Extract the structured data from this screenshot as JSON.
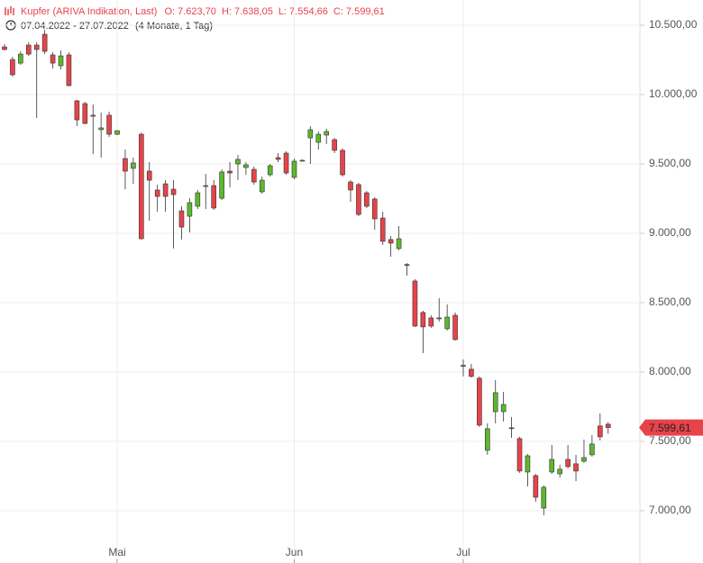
{
  "chart_data": {
    "type": "candlestick",
    "title": "Kupfer (ARIVA Indikation, Last)",
    "ohlc_labels": [
      "O: 7.623,70",
      "H: 7.638,05",
      "L: 7.554,66",
      "C: 7.599,61"
    ],
    "date_range": "07.04.2022 - 27.07.2022",
    "period": "(4 Monate, 1 Tag)",
    "last_price_label": "7.599,61",
    "up_color": "#5cb82e",
    "down_color": "#e8434a",
    "grid": true,
    "categories": [
      null,
      null,
      null,
      null,
      null,
      null,
      null,
      null,
      null,
      null,
      null,
      null,
      null,
      null,
      "Mai",
      null,
      null,
      null,
      null,
      null,
      null,
      null,
      null,
      null,
      null,
      null,
      null,
      null,
      null,
      null,
      null,
      null,
      null,
      null,
      null,
      null,
      "Jun",
      null,
      null,
      null,
      null,
      null,
      null,
      null,
      null,
      null,
      null,
      null,
      null,
      null,
      null,
      null,
      null,
      null,
      null,
      null,
      null,
      "Jul",
      null,
      null,
      null,
      null,
      null,
      null,
      null,
      null,
      null,
      null,
      null,
      null,
      null,
      null,
      null,
      null,
      null,
      null
    ],
    "open": [
      10344,
      10253,
      10227,
      10357,
      10357,
      10435,
      10286,
      10208,
      10286,
      9955,
      9935,
      9851,
      9747,
      9851,
      9714,
      9539,
      9468,
      9714,
      9448,
      9312,
      9357,
      9318,
      9162,
      9123,
      9195,
      9338,
      9344,
      9253,
      9448,
      9500,
      9474,
      9461,
      9299,
      9422,
      9546,
      9578,
      9403,
      9526,
      9688,
      9656,
      9708,
      9675,
      9598,
      9370,
      9351,
      9292,
      9247,
      9110,
      8955,
      8890,
      8775,
      8656,
      8429,
      8390,
      8390,
      8312,
      8409,
      8048,
      8020,
      7955,
      7435,
      7714,
      7714,
      7598,
      7520,
      7279,
      7253,
      7019,
      7279,
      7266,
      7370,
      7338,
      7357,
      7403,
      7611,
      7623.7
    ],
    "high": [
      10364,
      10273,
      10312,
      10377,
      10377,
      10468,
      10305,
      10318,
      10305,
      9961,
      9948,
      9929,
      9870,
      9877,
      9742,
      9604,
      9546,
      9727,
      9513,
      9351,
      9383,
      9383,
      9195,
      9253,
      9312,
      9429,
      9383,
      9461,
      9513,
      9565,
      9513,
      9481,
      9409,
      9500,
      9578,
      9591,
      9539,
      9533,
      9773,
      9734,
      9753,
      9688,
      9611,
      9383,
      9364,
      9305,
      9260,
      9156,
      8981,
      9052,
      8786,
      8669,
      8442,
      8409,
      8533,
      8487,
      8429,
      8091,
      8059,
      7968,
      7630,
      7942,
      7857,
      7675,
      7533,
      7409,
      7266,
      7182,
      7474,
      7331,
      7474,
      7403,
      7513,
      7546,
      7701,
      7638.05
    ],
    "low": [
      10318,
      10130,
      10214,
      10279,
      9831,
      10292,
      10188,
      10182,
      10059,
      9773,
      9786,
      9572,
      9546,
      9695,
      9708,
      9318,
      9357,
      8955,
      9091,
      9156,
      9156,
      8890,
      8955,
      9006,
      9175,
      9175,
      9169,
      9240,
      9331,
      9383,
      9422,
      9351,
      9286,
      9409,
      9513,
      9422,
      9390,
      9520,
      9500,
      9604,
      9643,
      9578,
      9409,
      9227,
      9123,
      9182,
      9026,
      8916,
      8831,
      8877,
      8695,
      8325,
      8136,
      8318,
      8364,
      8299,
      8227,
      7968,
      7961,
      7604,
      7403,
      7630,
      7643,
      7526,
      7273,
      7175,
      7065,
      6967,
      7266,
      7240,
      7305,
      7214,
      7344,
      7390,
      7507,
      7554.66
    ],
    "close": [
      10325,
      10143,
      10292,
      10292,
      10325,
      10312,
      10227,
      10279,
      10065,
      9818,
      9792,
      9844,
      9760,
      9714,
      9740,
      9448,
      9507,
      8961,
      9383,
      9266,
      9266,
      9279,
      9045,
      9221,
      9292,
      9344,
      9182,
      9442,
      9435,
      9533,
      9494,
      9370,
      9383,
      9487,
      9533,
      9435,
      9520,
      9526,
      9747,
      9714,
      9734,
      9598,
      9422,
      9312,
      9136,
      9195,
      9104,
      8942,
      8929,
      8961,
      8770,
      8331,
      8325,
      8331,
      8385,
      8396,
      8234,
      8045,
      7968,
      7617,
      7591,
      7851,
      7766,
      7597,
      7286,
      7396,
      7097,
      7169,
      7370,
      7299,
      7318,
      7286,
      7383,
      7481,
      7533,
      7599.61
    ],
    "ylim": [
      6623,
      10682
    ],
    "yticks": [
      {
        "value": 10500,
        "label": "10.500,00"
      },
      {
        "value": 10000,
        "label": "10.000,00"
      },
      {
        "value": 9500,
        "label": "9.500,00"
      },
      {
        "value": 9000,
        "label": "9.000,00"
      },
      {
        "value": 8500,
        "label": "8.500,00"
      },
      {
        "value": 8000,
        "label": "8.000,00"
      },
      {
        "value": 7500,
        "label": "7.500,00"
      },
      {
        "value": 7000,
        "label": "7.000,00"
      }
    ]
  }
}
